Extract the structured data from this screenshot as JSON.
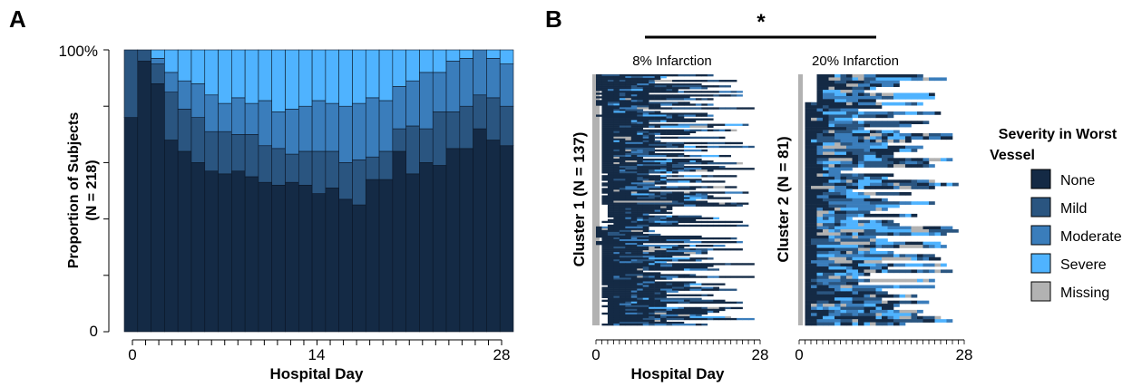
{
  "colors": {
    "none": "#142a45",
    "mild": "#2a5580",
    "moderate": "#3a7dbb",
    "severe": "#4fb3ff",
    "missing": "#b2b2b2"
  },
  "panel_a": {
    "label": "A",
    "ylabel_line1": "Proportion of Subjects",
    "ylabel_line2": "(N = 218)",
    "xlabel": "Hospital Day",
    "ytick_labels": [
      "100%",
      "0"
    ],
    "xtick_labels": [
      "0",
      "14",
      "28"
    ]
  },
  "panel_b": {
    "label": "B",
    "significance": "*",
    "xlabel": "Hospital Day",
    "cluster1_title": "8% Infarction",
    "cluster2_title": "20% Infarction",
    "cluster1_label": "Cluster 1 (N = 137)",
    "cluster2_label": "Cluster 2  (N = 81)",
    "xtick_labels": [
      "0",
      "28"
    ]
  },
  "legend": {
    "title_line1": "Severity in Worst",
    "title_line2": "Vessel",
    "items": [
      {
        "label": "None",
        "color": "#142a45"
      },
      {
        "label": "Mild",
        "color": "#2a5580"
      },
      {
        "label": "Moderate",
        "color": "#3a7dbb"
      },
      {
        "label": "Severe",
        "color": "#4fb3ff"
      },
      {
        "label": "Missing",
        "color": "#b2b2b2"
      }
    ]
  },
  "chart_data": [
    {
      "type": "bar",
      "stacked": true,
      "title": "",
      "xlabel": "Hospital Day",
      "ylabel": "Proportion of Subjects (N = 218)",
      "ylim": [
        0,
        1
      ],
      "x": [
        0,
        1,
        2,
        3,
        4,
        5,
        6,
        7,
        8,
        9,
        10,
        11,
        12,
        13,
        14,
        15,
        16,
        17,
        18,
        19,
        20,
        21,
        22,
        23,
        24,
        25,
        26,
        27,
        28
      ],
      "series": [
        {
          "name": "None",
          "values": [
            0.76,
            0.96,
            0.88,
            0.68,
            0.64,
            0.6,
            0.57,
            0.56,
            0.57,
            0.55,
            0.53,
            0.52,
            0.53,
            0.52,
            0.49,
            0.51,
            0.47,
            0.45,
            0.54,
            0.54,
            0.64,
            0.56,
            0.6,
            0.59,
            0.65,
            0.65,
            0.72,
            0.68,
            0.66
          ]
        },
        {
          "name": "Mild",
          "values": [
            0.24,
            0.04,
            0.07,
            0.17,
            0.15,
            0.16,
            0.14,
            0.15,
            0.13,
            0.15,
            0.13,
            0.13,
            0.1,
            0.12,
            0.15,
            0.13,
            0.13,
            0.16,
            0.08,
            0.1,
            0.08,
            0.17,
            0.12,
            0.19,
            0.13,
            0.15,
            0.12,
            0.15,
            0.14
          ]
        },
        {
          "name": "Moderate",
          "values": [
            0.0,
            0.0,
            0.02,
            0.07,
            0.1,
            0.12,
            0.13,
            0.1,
            0.13,
            0.11,
            0.16,
            0.13,
            0.16,
            0.16,
            0.18,
            0.17,
            0.2,
            0.2,
            0.21,
            0.18,
            0.15,
            0.16,
            0.2,
            0.14,
            0.18,
            0.17,
            0.16,
            0.14,
            0.15
          ]
        },
        {
          "name": "Severe",
          "values": [
            0.0,
            0.0,
            0.03,
            0.08,
            0.11,
            0.12,
            0.16,
            0.19,
            0.17,
            0.19,
            0.18,
            0.22,
            0.21,
            0.2,
            0.18,
            0.19,
            0.2,
            0.19,
            0.17,
            0.18,
            0.13,
            0.11,
            0.08,
            0.08,
            0.04,
            0.03,
            0.0,
            0.03,
            0.05
          ]
        },
        {
          "name": "Missing",
          "values": [
            0.0,
            0.0,
            0.0,
            0.0,
            0.0,
            0.0,
            0.0,
            0.0,
            0.0,
            0.0,
            0.0,
            0.0,
            0.0,
            0.0,
            0.0,
            0.0,
            0.0,
            0.0,
            0.0,
            0.0,
            0.0,
            0.0,
            0.0,
            0.0,
            0.0,
            0.0,
            0.0,
            0.0,
            0.0
          ]
        }
      ]
    },
    {
      "type": "heatmap",
      "title": "8% Infarction",
      "ylabel": "Cluster 1 (N = 137)",
      "xlabel": "Hospital Day",
      "xlim": [
        0,
        28
      ],
      "n_subjects": 137
    },
    {
      "type": "heatmap",
      "title": "20% Infarction",
      "ylabel": "Cluster 2  (N = 81)",
      "xlabel": "Hospital Day",
      "xlim": [
        0,
        28
      ],
      "n_subjects": 81
    }
  ]
}
